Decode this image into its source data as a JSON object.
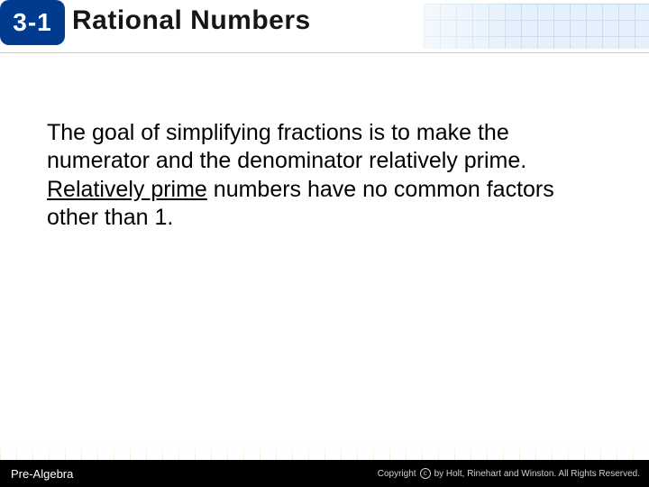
{
  "header": {
    "chapter_number": "3-1",
    "chapter_title": "Rational Numbers"
  },
  "body": {
    "part1": "The goal of simplifying fractions is to make the numerator and the denominator ",
    "part2_plain": "relatively prime. ",
    "part3_underlined": "Relatively prime",
    "part4": " numbers have no common factors other than 1."
  },
  "footer": {
    "left": "Pre-Algebra",
    "right_prefix": "Copyright",
    "right_text": "by Holt, Rinehart and Winston. All Rights Reserved."
  },
  "colors": {
    "badge_bg": "#003b8f",
    "badge_text": "#ffffff",
    "title_text": "#161616",
    "footer_bg": "#000000",
    "top_grid_line": "#c8ddf2",
    "top_grid_fill": "#e6f0fa",
    "bottom_grid_line": "#f6ddb5"
  }
}
